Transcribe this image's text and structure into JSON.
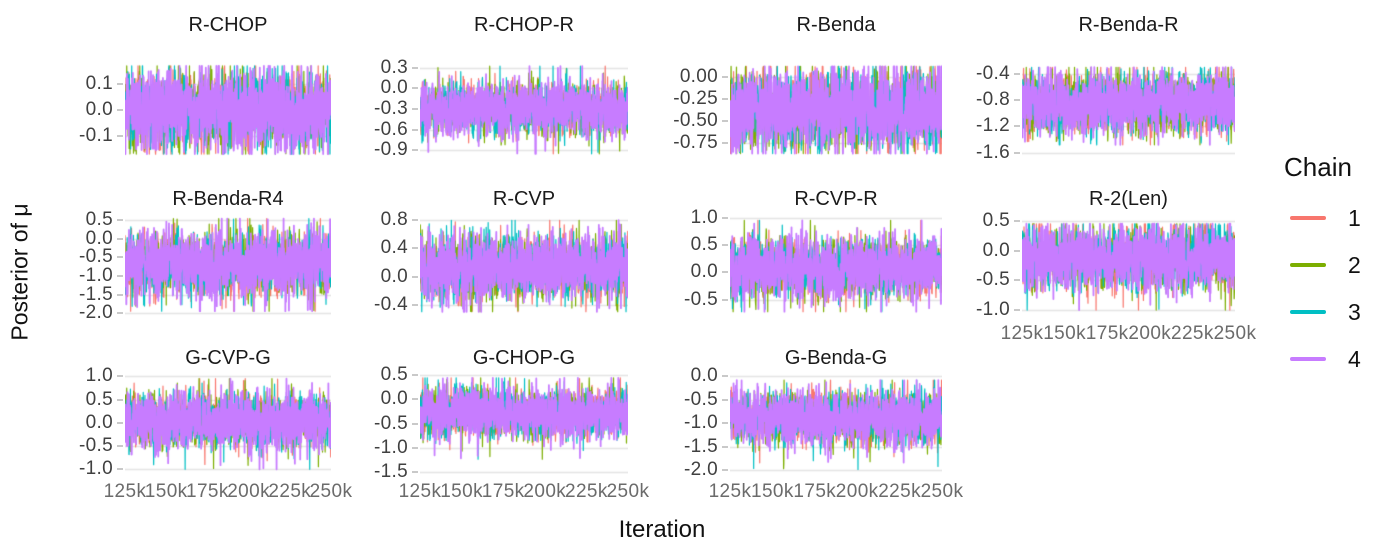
{
  "chart_data": {
    "type": "line",
    "subtype": "mcmc-trace",
    "description": "Faceted MCMC trace plot: posterior draws of mu for 11 treatment regimens, 4 overlaid chains each, iterations 125k-250k",
    "xlabel": "Iteration",
    "ylabel": "Posterior of μ",
    "x_ticks": [
      "125k",
      "150k",
      "175k",
      "200k",
      "225k",
      "250k"
    ],
    "x_range": [
      125000,
      250000
    ],
    "grid": "horizontal-only",
    "grid_color": "#e4e4e4",
    "tick_mark_color": "#c9c9c9",
    "y_tick_text_color": "#404040",
    "x_tick_text_color": "#6b6b6b",
    "legend": {
      "title": "Chain",
      "position": "right",
      "entries": [
        {
          "label": "1",
          "color": "#F8766D"
        },
        {
          "label": "2",
          "color": "#7CAE00"
        },
        {
          "label": "3",
          "color": "#00BFC4"
        },
        {
          "label": "4",
          "color": "#C77CFF"
        }
      ]
    },
    "facets": [
      {
        "title": "R-CHOP",
        "row": 0,
        "col": 0,
        "y_tick_labels": [
          "0.1",
          "0.0",
          "-0.1"
        ],
        "y_tick_values": [
          0.1,
          0,
          -0.1
        ],
        "y_domain": [
          -0.185,
          0.185
        ],
        "band_center": 0.0,
        "sigma": 0.072,
        "spike_range": [
          -0.17,
          0.17
        ]
      },
      {
        "title": "R-CHOP-R",
        "row": 0,
        "col": 1,
        "y_tick_labels": [
          "0.3",
          "0.0",
          "-0.3",
          "-0.6",
          "-0.9"
        ],
        "y_tick_values": [
          0.3,
          0,
          -0.3,
          -0.6,
          -0.9
        ],
        "y_domain": [
          -1.01,
          0.38
        ],
        "band_center": -0.3,
        "sigma": 0.18,
        "spike_range": [
          -0.95,
          0.32
        ]
      },
      {
        "title": "R-Benda",
        "row": 0,
        "col": 2,
        "y_tick_labels": [
          "0.00",
          "-0.25",
          "-0.50",
          "-0.75"
        ],
        "y_tick_values": [
          0,
          -0.25,
          -0.5,
          -0.75
        ],
        "y_domain": [
          -0.92,
          0.17
        ],
        "band_center": -0.37,
        "sigma": 0.22,
        "spike_range": [
          -0.87,
          0.12
        ]
      },
      {
        "title": "R-Benda-R",
        "row": 0,
        "col": 3,
        "y_tick_labels": [
          "-0.4",
          "-0.8",
          "-1.2",
          "-1.6"
        ],
        "y_tick_values": [
          -0.4,
          -0.8,
          -1.2,
          -1.6
        ],
        "y_domain": [
          -1.68,
          -0.22
        ],
        "band_center": -0.85,
        "sigma": 0.23,
        "spike_range": [
          -1.48,
          -0.3
        ]
      },
      {
        "title": "R-Benda-R4",
        "row": 1,
        "col": 0,
        "y_tick_labels": [
          "0.5",
          "0.0",
          "-0.5",
          "-1.0",
          "-1.5",
          "-2.0"
        ],
        "y_tick_values": [
          0.5,
          0,
          -0.5,
          -1.0,
          -1.5,
          -2.0
        ],
        "y_domain": [
          -2.08,
          0.62
        ],
        "band_center": -0.68,
        "sigma": 0.41,
        "spike_range": [
          -1.95,
          0.55
        ]
      },
      {
        "title": "R-CVP",
        "row": 1,
        "col": 1,
        "y_tick_labels": [
          "0.8",
          "0.4",
          "0.0",
          "-0.4"
        ],
        "y_tick_values": [
          0.8,
          0.4,
          0,
          -0.4
        ],
        "y_domain": [
          -0.56,
          0.86
        ],
        "band_center": 0.12,
        "sigma": 0.22,
        "spike_range": [
          -0.5,
          0.8
        ]
      },
      {
        "title": "R-CVP-R",
        "row": 1,
        "col": 2,
        "y_tick_labels": [
          "1.0",
          "0.5",
          "0.0",
          "-0.5"
        ],
        "y_tick_values": [
          1.0,
          0.5,
          0,
          -0.5
        ],
        "y_domain": [
          -0.8,
          1.03
        ],
        "band_center": 0.08,
        "sigma": 0.26,
        "spike_range": [
          -0.72,
          0.95
        ]
      },
      {
        "title": "R-2(Len)",
        "row": 1,
        "col": 3,
        "y_tick_labels": [
          "0.5",
          "0.0",
          "-0.5",
          "-1.0"
        ],
        "y_tick_values": [
          0.5,
          0,
          -0.5,
          -1.0
        ],
        "y_domain": [
          -1.1,
          0.58
        ],
        "band_center": -0.12,
        "sigma": 0.26,
        "spike_range": [
          -1.0,
          0.45
        ]
      },
      {
        "title": "G-CVP-G",
        "row": 2,
        "col": 0,
        "y_tick_labels": [
          "1.0",
          "0.5",
          "0.0",
          "-0.5",
          "-1.0"
        ],
        "y_tick_values": [
          1.0,
          0.5,
          0,
          -0.5,
          -1.0
        ],
        "y_domain": [
          -1.1,
          1.05
        ],
        "band_center": 0.05,
        "sigma": 0.28,
        "spike_range": [
          -1.0,
          0.95
        ]
      },
      {
        "title": "G-CHOP-G",
        "row": 2,
        "col": 1,
        "y_tick_labels": [
          "0.5",
          "0.0",
          "-0.5",
          "-1.0",
          "-1.5"
        ],
        "y_tick_values": [
          0.5,
          0,
          -0.5,
          -1.0,
          -1.5
        ],
        "y_domain": [
          -1.55,
          0.53
        ],
        "band_center": -0.28,
        "sigma": 0.25,
        "spike_range": [
          -1.45,
          0.45
        ]
      },
      {
        "title": "G-Benda-G",
        "row": 2,
        "col": 2,
        "y_tick_labels": [
          "0.0",
          "-0.5",
          "-1.0",
          "-1.5",
          "-2.0"
        ],
        "y_tick_values": [
          0,
          -0.5,
          -1.0,
          -1.5,
          -2.0
        ],
        "y_domain": [
          -2.08,
          0.05
        ],
        "band_center": -0.88,
        "sigma": 0.28,
        "spike_range": [
          -2.0,
          -0.08
        ]
      }
    ]
  }
}
